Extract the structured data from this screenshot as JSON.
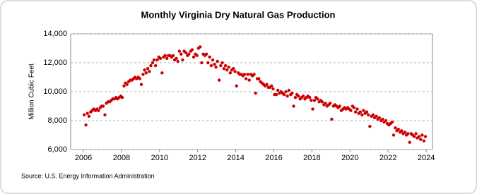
{
  "chart_data": {
    "type": "scatter",
    "title": "Monthly Virginia Dry Natural Gas Production",
    "y_label": "Million Cubic Feet",
    "source": "Source: U.S. Energy Information Administration",
    "color": "#cc0000",
    "grid": true,
    "xlim": [
      2005.33,
      2024.33
    ],
    "xticks": [
      2006,
      2008,
      2010,
      2012,
      2014,
      2016,
      2018,
      2020,
      2022,
      2024
    ],
    "ylim": [
      6000,
      14000
    ],
    "yticks": [
      {
        "value": 6000,
        "label": "6,000"
      },
      {
        "value": 8000,
        "label": "8,000"
      },
      {
        "value": 10000,
        "label": "10,000"
      },
      {
        "value": 12000,
        "label": "12,000"
      },
      {
        "value": 14000,
        "label": "14,000"
      }
    ],
    "x": [
      2006.04,
      2006.13,
      2006.21,
      2006.29,
      2006.38,
      2006.46,
      2006.54,
      2006.63,
      2006.71,
      2006.79,
      2006.88,
      2006.96,
      2007.04,
      2007.13,
      2007.21,
      2007.29,
      2007.38,
      2007.46,
      2007.54,
      2007.63,
      2007.71,
      2007.79,
      2007.88,
      2007.96,
      2008.04,
      2008.13,
      2008.21,
      2008.29,
      2008.38,
      2008.46,
      2008.54,
      2008.63,
      2008.71,
      2008.79,
      2008.88,
      2008.96,
      2009.04,
      2009.13,
      2009.21,
      2009.29,
      2009.38,
      2009.46,
      2009.54,
      2009.63,
      2009.71,
      2009.79,
      2009.88,
      2009.96,
      2010.04,
      2010.13,
      2010.21,
      2010.29,
      2010.38,
      2010.46,
      2010.54,
      2010.63,
      2010.71,
      2010.79,
      2010.88,
      2010.96,
      2011.04,
      2011.13,
      2011.21,
      2011.29,
      2011.38,
      2011.46,
      2011.54,
      2011.63,
      2011.71,
      2011.79,
      2011.88,
      2011.96,
      2012.04,
      2012.13,
      2012.21,
      2012.29,
      2012.38,
      2012.46,
      2012.54,
      2012.63,
      2012.71,
      2012.79,
      2012.88,
      2012.96,
      2013.04,
      2013.13,
      2013.21,
      2013.29,
      2013.38,
      2013.46,
      2013.54,
      2013.63,
      2013.71,
      2013.79,
      2013.88,
      2013.96,
      2014.04,
      2014.13,
      2014.21,
      2014.29,
      2014.38,
      2014.46,
      2014.54,
      2014.63,
      2014.71,
      2014.79,
      2014.88,
      2014.96,
      2015.04,
      2015.13,
      2015.21,
      2015.29,
      2015.38,
      2015.46,
      2015.54,
      2015.63,
      2015.71,
      2015.79,
      2015.88,
      2015.96,
      2016.04,
      2016.13,
      2016.21,
      2016.29,
      2016.38,
      2016.46,
      2016.54,
      2016.63,
      2016.71,
      2016.79,
      2016.88,
      2016.96,
      2017.04,
      2017.13,
      2017.21,
      2017.29,
      2017.38,
      2017.46,
      2017.54,
      2017.63,
      2017.71,
      2017.79,
      2017.88,
      2017.96,
      2018.04,
      2018.13,
      2018.21,
      2018.29,
      2018.38,
      2018.46,
      2018.54,
      2018.63,
      2018.71,
      2018.79,
      2018.88,
      2018.96,
      2019.04,
      2019.13,
      2019.21,
      2019.29,
      2019.38,
      2019.46,
      2019.54,
      2019.63,
      2019.71,
      2019.79,
      2019.88,
      2019.96,
      2020.04,
      2020.13,
      2020.21,
      2020.29,
      2020.38,
      2020.46,
      2020.54,
      2020.63,
      2020.71,
      2020.79,
      2020.88,
      2020.96,
      2021.04,
      2021.13,
      2021.21,
      2021.29,
      2021.38,
      2021.46,
      2021.54,
      2021.63,
      2021.71,
      2021.79,
      2021.88,
      2021.96,
      2022.04,
      2022.13,
      2022.21,
      2022.29,
      2022.38,
      2022.46,
      2022.54,
      2022.63,
      2022.71,
      2022.79,
      2022.88,
      2022.96,
      2023.04,
      2023.13,
      2023.21,
      2023.29,
      2023.38,
      2023.46,
      2023.54,
      2023.63,
      2023.71,
      2023.79,
      2023.88,
      2023.96
    ],
    "values": [
      8400,
      7700,
      8500,
      8300,
      8600,
      8700,
      8800,
      8700,
      8800,
      8700,
      8900,
      9000,
      9000,
      8400,
      9200,
      9300,
      9300,
      9400,
      9500,
      9500,
      9600,
      9500,
      9600,
      9700,
      9600,
      10400,
      10600,
      10500,
      10700,
      10800,
      10800,
      10900,
      11000,
      10900,
      11000,
      10900,
      10500,
      11200,
      11500,
      11300,
      11600,
      11400,
      11800,
      12000,
      12200,
      11800,
      12200,
      12400,
      12300,
      11300,
      12400,
      12500,
      12300,
      12500,
      12500,
      12400,
      12500,
      12200,
      12300,
      12100,
      12800,
      12600,
      12200,
      12800,
      12700,
      12500,
      12600,
      12800,
      12900,
      12400,
      12600,
      12500,
      13000,
      13100,
      12000,
      12600,
      12500,
      12600,
      12000,
      12400,
      11800,
      12200,
      11900,
      11700,
      12100,
      10800,
      11800,
      12000,
      11600,
      11800,
      11500,
      11700,
      11300,
      11500,
      11600,
      11400,
      10400,
      11300,
      11200,
      11200,
      11100,
      11200,
      10900,
      11200,
      10800,
      11200,
      11100,
      11200,
      9900,
      10900,
      10900,
      10700,
      10600,
      10500,
      10400,
      10500,
      10300,
      10300,
      10400,
      10200,
      9800,
      9800,
      10100,
      9900,
      10000,
      9900,
      9800,
      10000,
      9700,
      10100,
      9800,
      9900,
      9000,
      9600,
      9800,
      9700,
      9500,
      9600,
      9700,
      9500,
      9600,
      9700,
      9600,
      9400,
      8800,
      9400,
      9600,
      9500,
      9300,
      9400,
      9300,
      9100,
      9200,
      9000,
      9100,
      9200,
      8100,
      9000,
      9100,
      9000,
      8900,
      9000,
      8700,
      8800,
      8900,
      8800,
      8900,
      8800,
      8700,
      9000,
      8900,
      8600,
      8800,
      8500,
      8600,
      8400,
      8700,
      8500,
      8600,
      8400,
      7600,
      8300,
      8400,
      8200,
      8300,
      8100,
      8200,
      8000,
      8100,
      7900,
      8000,
      7800,
      7700,
      7800,
      7900,
      7000,
      7500,
      7300,
      7400,
      7200,
      7300,
      7100,
      7200,
      7000,
      7100,
      6500,
      7100,
      7000,
      6900,
      7100,
      6800,
      6900,
      6700,
      7000,
      6600,
      6900
    ]
  }
}
